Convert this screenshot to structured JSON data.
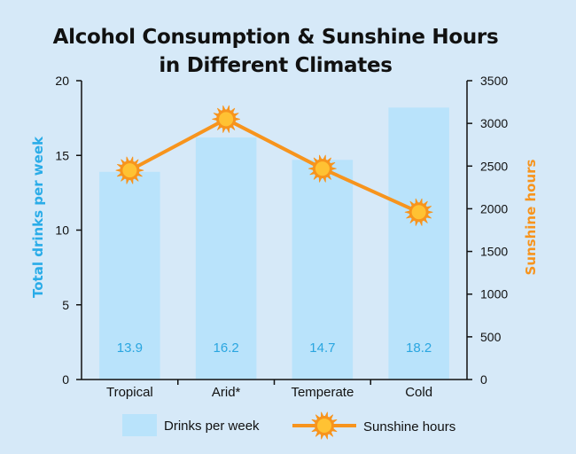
{
  "colors": {
    "background": "#d6e9f8",
    "bar": "#b9e3fb",
    "bar_label": "#2aa6e0",
    "left_axis_title": "#2aace8",
    "line": "#f7941d",
    "sun_fill": "#ffc233",
    "right_axis_title": "#f7941d",
    "axis": "#111111"
  },
  "chart_data": {
    "type": "bar",
    "title_lines": [
      "Alcohol Consumption & Sunshine Hours",
      "in Different Climates"
    ],
    "categories": [
      "Tropical",
      "Arid*",
      "Temperate",
      "Cold"
    ],
    "series": [
      {
        "name": "Drinks per week",
        "type": "bar",
        "axis": "left",
        "values": [
          13.9,
          16.2,
          14.7,
          18.2
        ],
        "labels": [
          "13.9",
          "16.2",
          "14.7",
          "18.2"
        ]
      },
      {
        "name": "Sunshine hours",
        "type": "line",
        "axis": "right",
        "marker": "sun-icon",
        "values": [
          2450,
          3050,
          2470,
          1960
        ]
      }
    ],
    "ylabel": "Total drinks per week",
    "y2label": "Sunshine hours",
    "ylim": [
      0,
      20
    ],
    "yticks": [
      "0",
      "5",
      "10",
      "15",
      "20"
    ],
    "y2lim": [
      0,
      3500
    ],
    "y2ticks": [
      "0",
      "500",
      "1000",
      "1500",
      "2000",
      "2500",
      "3000",
      "3500"
    ],
    "grid": false,
    "legend_position": "bottom"
  }
}
